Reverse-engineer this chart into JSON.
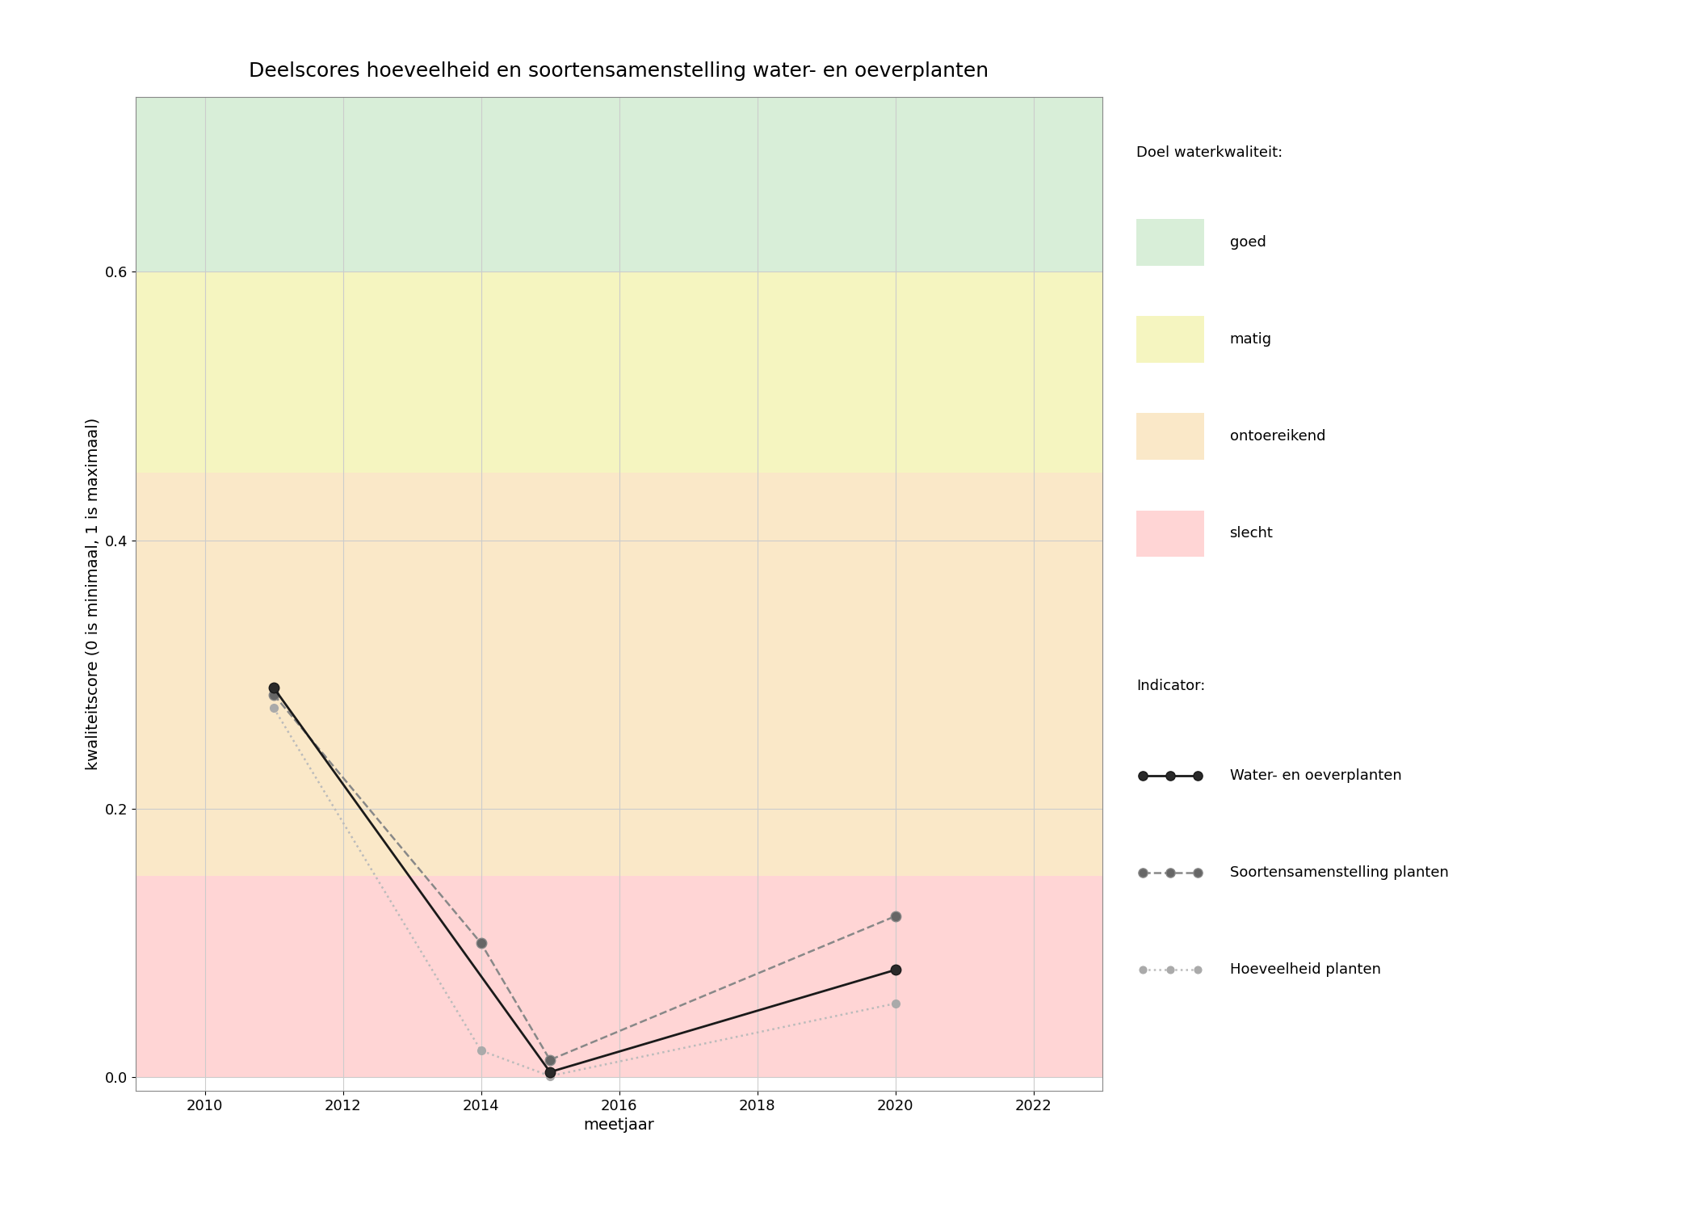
{
  "title": "Deelscores hoeveelheid en soortensamenstelling water- en oeverplanten",
  "xlabel": "meetjaar",
  "ylabel": "kwaliteitscore (0 is minimaal, 1 is maximaal)",
  "xlim": [
    2009,
    2023
  ],
  "ylim": [
    -0.01,
    0.73
  ],
  "xticks": [
    2010,
    2012,
    2014,
    2016,
    2018,
    2020,
    2022
  ],
  "yticks": [
    0.0,
    0.2,
    0.4,
    0.6
  ],
  "bg_zones": [
    {
      "ymin": 0.0,
      "ymax": 0.15,
      "color": "#FFD5D5",
      "label": "slecht"
    },
    {
      "ymin": 0.15,
      "ymax": 0.45,
      "color": "#FAE8C8",
      "label": "ontoereikend"
    },
    {
      "ymin": 0.45,
      "ymax": 0.6,
      "color": "#F5F5C0",
      "label": "matig"
    },
    {
      "ymin": 0.6,
      "ymax": 0.73,
      "color": "#D8EED8",
      "label": "goed"
    }
  ],
  "series": [
    {
      "name": "Water- en oeverplanten",
      "x": [
        2011,
        2015,
        2020
      ],
      "y": [
        0.29,
        0.004,
        0.08
      ],
      "color": "#1a1a1a",
      "linestyle": "solid",
      "linewidth": 2.0,
      "marker": "o",
      "markersize": 9,
      "markerfacecolor": "#2a2a2a",
      "markeredgecolor": "#1a1a1a",
      "zorder": 5
    },
    {
      "name": "Soortensamenstelling planten",
      "x": [
        2011,
        2014,
        2015,
        2020
      ],
      "y": [
        0.285,
        0.1,
        0.013,
        0.12
      ],
      "color": "#888888",
      "linestyle": "dashed",
      "linewidth": 1.8,
      "marker": "o",
      "markersize": 9,
      "markerfacecolor": "#666666",
      "markeredgecolor": "#888888",
      "zorder": 4
    },
    {
      "name": "Hoeveelheid planten",
      "x": [
        2011,
        2014,
        2015,
        2020
      ],
      "y": [
        0.275,
        0.02,
        0.001,
        0.055
      ],
      "color": "#bbbbbb",
      "linestyle": "dotted",
      "linewidth": 1.8,
      "marker": "o",
      "markersize": 7,
      "markerfacecolor": "#aaaaaa",
      "markeredgecolor": "#aaaaaa",
      "zorder": 3
    }
  ],
  "legend_zone_title": "Doel waterkwaliteit:",
  "legend_indicator_title": "Indicator:",
  "legend_zone_colors": [
    "#D8EED8",
    "#F5F5C0",
    "#FAE8C8",
    "#FFD5D5"
  ],
  "legend_zone_labels": [
    "goed",
    "matig",
    "ontoereikend",
    "slecht"
  ],
  "bg_color": "#ffffff",
  "grid_color": "#cccccc",
  "title_fontsize": 18,
  "axis_label_fontsize": 14,
  "tick_fontsize": 13,
  "legend_fontsize": 13
}
